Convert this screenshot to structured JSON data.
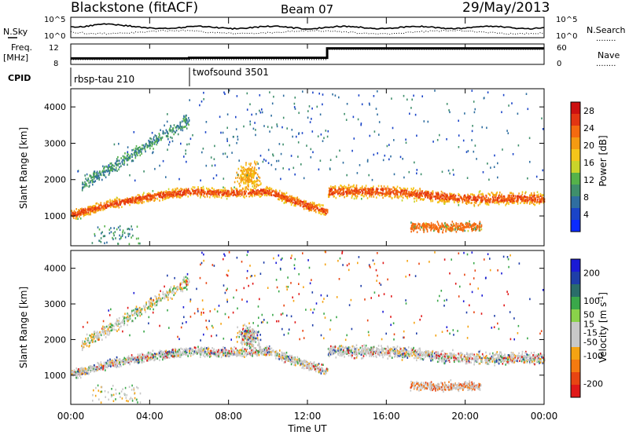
{
  "header": {
    "radar": "Blackstone (fitACF)",
    "beam": "Beam 07",
    "date": "29/May/2013"
  },
  "strip_labels": {
    "nsky": "N.Sky",
    "nsearch": "N.Search",
    "freq_line1": "Freq.",
    "freq_line2": "[MHz]",
    "nave": "Nave",
    "cpid": "CPID",
    "nsky_ticks": [
      "10^5",
      "10^0"
    ],
    "nsearch_ticks": [
      "10^5",
      "10^0"
    ],
    "freq_ticks": [
      "12",
      "8"
    ],
    "nave_ticks": [
      "60",
      "0"
    ],
    "dotted_marker": "........"
  },
  "cpid_programs": [
    {
      "name": "rbsp-tau 210",
      "start_hour": 0
    },
    {
      "name": "twofsound 3501",
      "start_hour": 6
    }
  ],
  "colors": {
    "power": [
      "#0a2bff",
      "#1a44c8",
      "#2f6ea0",
      "#3f8f6b",
      "#55b24a",
      "#c9d42a",
      "#f5c51a",
      "#f59a12",
      "#f56a10",
      "#e33512",
      "#cc1010"
    ],
    "velocity": [
      "#1a1ad6",
      "#1e3ea8",
      "#2a6d6a",
      "#3aa84a",
      "#8ad24a",
      "#c8c8c8",
      "#c8c8c8",
      "#f5a312",
      "#f57a10",
      "#e84512",
      "#e01818"
    ]
  },
  "chart_data": [
    {
      "type": "heatmap",
      "panel": "power",
      "xlabel": "Time UT",
      "ylabel": "Slant Range [km]",
      "xlim": [
        0,
        24
      ],
      "ylim": [
        180,
        4500
      ],
      "x_ticks": [
        "00:00",
        "04:00",
        "08:00",
        "12:00",
        "16:00",
        "20:00",
        "00:00"
      ],
      "y_ticks": [
        1000,
        2000,
        3000,
        4000
      ],
      "colorbar_label": "Power [dB]",
      "colorbar_ticks": [
        4,
        8,
        12,
        16,
        20,
        24,
        28
      ],
      "colorbar_range": [
        0,
        30
      ],
      "features": [
        {
          "desc": "main ground-scatter band",
          "x": [
            0,
            2,
            4,
            6,
            8,
            10,
            12,
            13
          ],
          "range_km": [
            1050,
            1350,
            1550,
            1700,
            1650,
            1700,
            1300,
            1150
          ]
        },
        {
          "desc": "band after 13 UT",
          "x": [
            13,
            16,
            20,
            24
          ],
          "range_km": [
            1700,
            1700,
            1500,
            1500
          ]
        },
        {
          "desc": "low-range patch",
          "x": [
            17.5,
            20.5
          ],
          "range_km": [
            700,
            700
          ]
        }
      ]
    },
    {
      "type": "heatmap",
      "panel": "velocity",
      "xlabel": "Time UT",
      "ylabel": "Slant Range [km]",
      "xlim": [
        0,
        24
      ],
      "ylim": [
        180,
        4500
      ],
      "x_ticks": [
        "00:00",
        "04:00",
        "08:00",
        "12:00",
        "16:00",
        "20:00",
        "00:00"
      ],
      "y_ticks": [
        1000,
        2000,
        3000,
        4000
      ],
      "colorbar_label": "Velocity [m s^-1]",
      "colorbar_ticks": [
        200,
        100,
        50,
        15,
        -15,
        -50,
        -100,
        -200
      ],
      "colorbar_range": [
        -250,
        250
      ]
    }
  ],
  "freq_series": {
    "x": [
      0,
      6,
      13,
      24
    ],
    "mhz": [
      8.4,
      8.6,
      11.6,
      11.6
    ]
  },
  "nave_series": {
    "x": [
      0,
      6,
      13,
      24
    ],
    "value": [
      14,
      14,
      44,
      44
    ]
  }
}
